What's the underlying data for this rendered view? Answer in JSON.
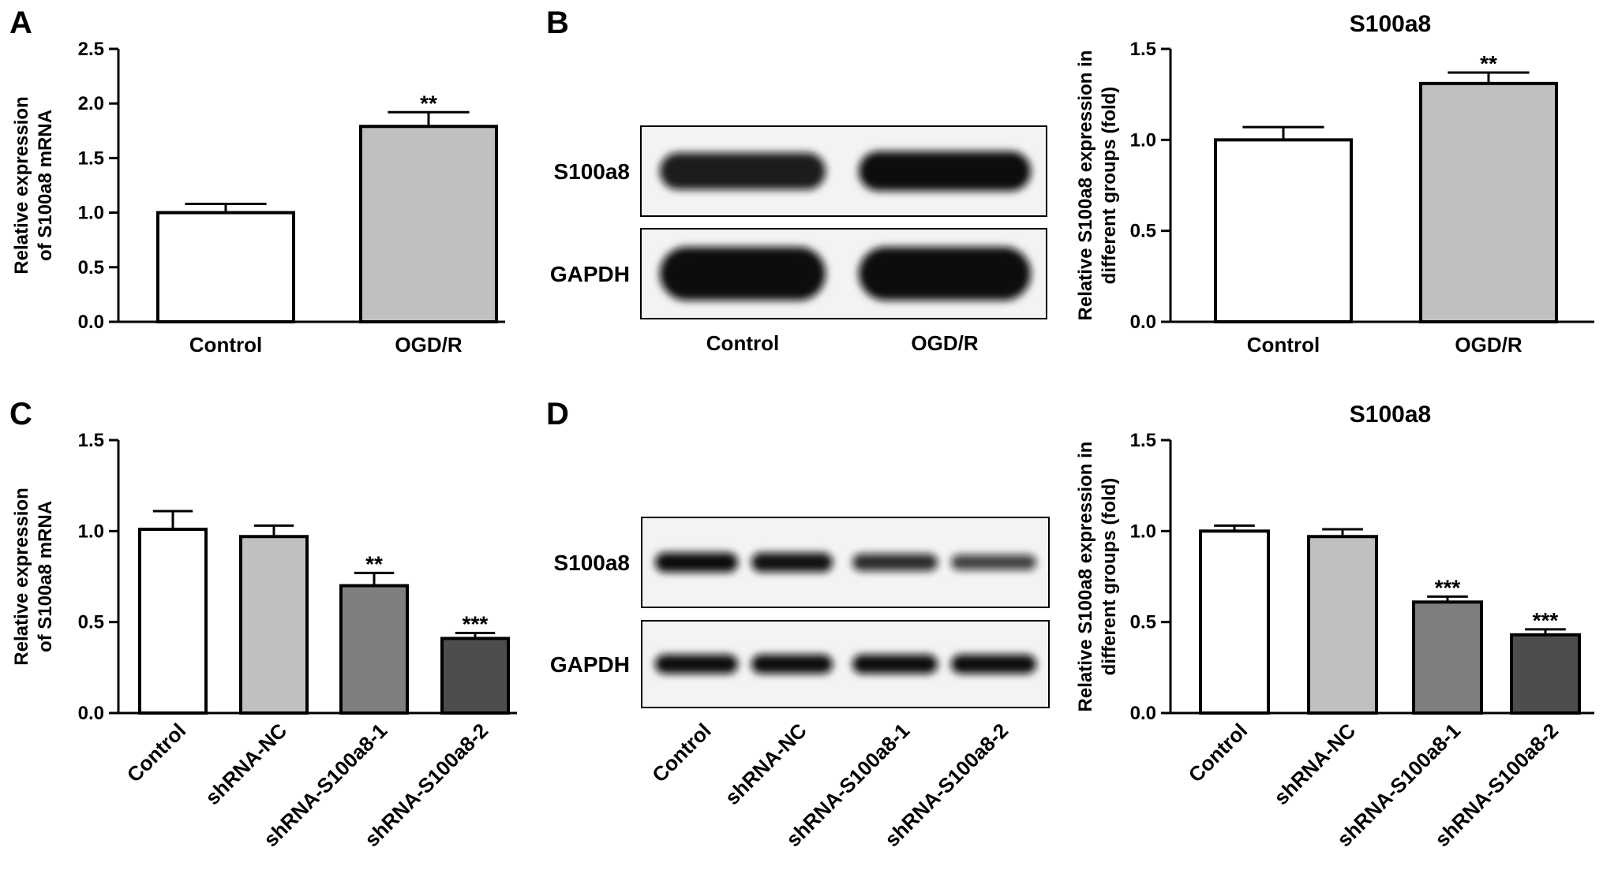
{
  "panels": {
    "A": "A",
    "B": "B",
    "C": "C",
    "D": "D"
  },
  "colors": {
    "control": "#ffffff",
    "light_gray": "#c0c0c0",
    "mid_gray": "#7f7f7f",
    "dark_gray": "#4d4d4d",
    "outline": "#000000"
  },
  "blots": [
    {
      "panel": "B",
      "lanes": [
        "Control",
        "OGD/R"
      ],
      "rows": [
        {
          "label": "S100a8",
          "intensities": [
            0.85,
            1.0
          ]
        },
        {
          "label": "GAPDH",
          "intensities": [
            1.0,
            1.0
          ]
        }
      ]
    },
    {
      "panel": "D",
      "lanes": [
        "Control",
        "shRNA-NC",
        "shRNA-S100a8-1",
        "shRNA-S100a8-2"
      ],
      "rows": [
        {
          "label": "S100a8",
          "intensities": [
            1.0,
            0.95,
            0.7,
            0.5
          ]
        },
        {
          "label": "GAPDH",
          "intensities": [
            1.0,
            1.0,
            1.0,
            1.0
          ]
        }
      ]
    }
  ],
  "chart_data": [
    {
      "panel": "A",
      "type": "bar",
      "title": "",
      "categories": [
        "Control",
        "OGD/R"
      ],
      "values": [
        1.0,
        1.79
      ],
      "errors": [
        0.08,
        0.13
      ],
      "significance": [
        "",
        "**"
      ],
      "colors": [
        "#ffffff",
        "#c0c0c0"
      ],
      "ylabel_lines": [
        "Relative expression",
        "of S100a8 mRNA"
      ],
      "ylim": [
        0,
        2.5
      ],
      "yticks": [
        "0.0",
        "0.5",
        "1.0",
        "1.5",
        "2.0",
        "2.5"
      ],
      "rotated_labels": false
    },
    {
      "panel": "B",
      "type": "bar",
      "title": "S100a8",
      "categories": [
        "Control",
        "OGD/R"
      ],
      "values": [
        1.0,
        1.31
      ],
      "errors": [
        0.07,
        0.06
      ],
      "significance": [
        "",
        "**"
      ],
      "colors": [
        "#ffffff",
        "#c0c0c0"
      ],
      "ylabel_lines": [
        "Relative S100a8 expression in",
        "different groups (fold)"
      ],
      "ylim": [
        0,
        1.5
      ],
      "yticks": [
        "0.0",
        "0.5",
        "1.0",
        "1.5"
      ],
      "rotated_labels": false
    },
    {
      "panel": "C",
      "type": "bar",
      "title": "",
      "categories": [
        "Control",
        "shRNA-NC",
        "shRNA-S100a8-1",
        "shRNA-S100a8-2"
      ],
      "values": [
        1.01,
        0.97,
        0.7,
        0.41
      ],
      "errors": [
        0.1,
        0.06,
        0.07,
        0.03
      ],
      "significance": [
        "",
        "",
        "**",
        "***"
      ],
      "colors": [
        "#ffffff",
        "#c0c0c0",
        "#7f7f7f",
        "#4d4d4d"
      ],
      "ylabel_lines": [
        "Relative expression",
        "of S100a8 mRNA"
      ],
      "ylim": [
        0,
        1.5
      ],
      "yticks": [
        "0.0",
        "0.5",
        "1.0",
        "1.5"
      ],
      "rotated_labels": true
    },
    {
      "panel": "D",
      "type": "bar",
      "title": "S100a8",
      "categories": [
        "Control",
        "shRNA-NC",
        "shRNA-S100a8-1",
        "shRNA-S100a8-2"
      ],
      "values": [
        1.0,
        0.97,
        0.61,
        0.43
      ],
      "errors": [
        0.03,
        0.04,
        0.03,
        0.03
      ],
      "significance": [
        "",
        "",
        "***",
        "***"
      ],
      "colors": [
        "#ffffff",
        "#c0c0c0",
        "#7f7f7f",
        "#4d4d4d"
      ],
      "ylabel_lines": [
        "Relative S100a8 expression in",
        "different groups (fold)"
      ],
      "ylim": [
        0,
        1.5
      ],
      "yticks": [
        "0.0",
        "0.5",
        "1.0",
        "1.5"
      ],
      "rotated_labels": true
    }
  ]
}
